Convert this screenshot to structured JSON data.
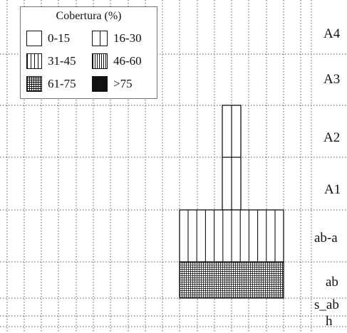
{
  "legend": {
    "title": "Cobertura (%)",
    "items": [
      {
        "label": "0-15",
        "pattern": "empty"
      },
      {
        "label": "16-30",
        "pattern": "single-vertical-line"
      },
      {
        "label": "31-45",
        "pattern": "sparse-vertical-lines"
      },
      {
        "label": "46-60",
        "pattern": "dense-vertical-lines"
      },
      {
        "label": "61-75",
        "pattern": "grid-hatch"
      },
      {
        "label": ">75",
        "pattern": "solid-black"
      }
    ]
  },
  "strata": [
    {
      "label": "A4",
      "cover_class": null
    },
    {
      "label": "A3",
      "cover_class": null
    },
    {
      "label": "A2",
      "cover_class": "16-30"
    },
    {
      "label": "A1",
      "cover_class": "16-30"
    },
    {
      "label": "ab-a",
      "cover_class": "31-45"
    },
    {
      "label": "ab",
      "cover_class": "61-75"
    },
    {
      "label": "s_ab",
      "cover_class": null
    },
    {
      "label": "h",
      "cover_class": null
    }
  ],
  "colors": {
    "ink": "#111111",
    "grid": "#555555",
    "background": "#ffffff"
  }
}
